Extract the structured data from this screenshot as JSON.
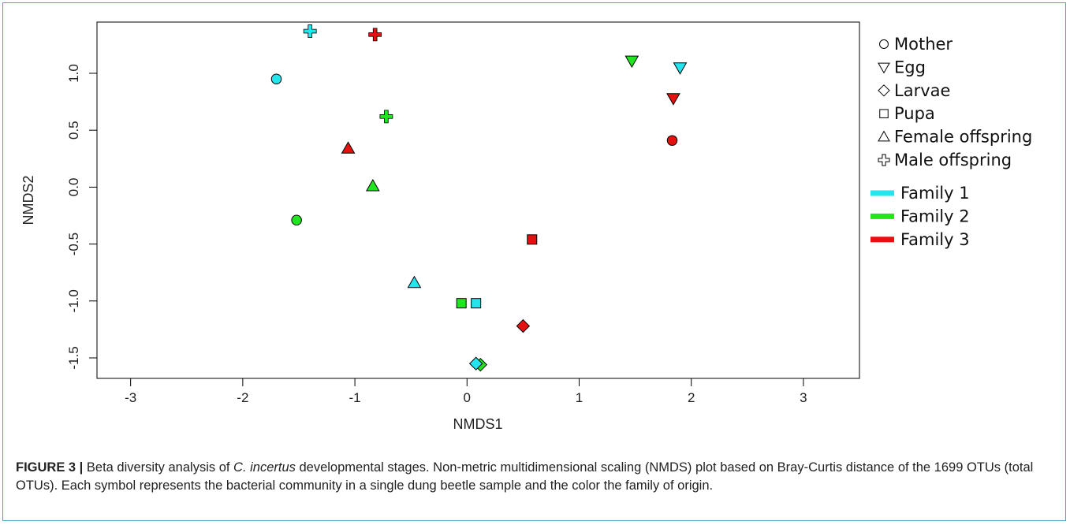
{
  "chart_data": {
    "type": "scatter",
    "xlabel": "NMDS1",
    "ylabel": "NMDS2",
    "xlim": [
      -3.3,
      3.5
    ],
    "ylim": [
      -1.68,
      1.45
    ],
    "xticks": [
      "-3",
      "-2",
      "-1",
      "0",
      "1",
      "2",
      "3"
    ],
    "xtick_values": [
      -3,
      -2,
      -1,
      0,
      1,
      2,
      3
    ],
    "yticks": [
      "-1.5",
      "-1.0",
      "-0.5",
      "0.0",
      "0.5",
      "1.0"
    ],
    "ytick_values": [
      -1.5,
      -1.0,
      -0.5,
      0.0,
      0.5,
      1.0
    ],
    "grid": false,
    "legend_position": "right",
    "shape_legend": [
      {
        "symbol": "circle",
        "label": "Mother"
      },
      {
        "symbol": "triangle-down",
        "label": "Egg"
      },
      {
        "symbol": "diamond",
        "label": "Larvae"
      },
      {
        "symbol": "square",
        "label": "Pupa"
      },
      {
        "symbol": "triangle-up",
        "label": "Female offspring"
      },
      {
        "symbol": "plus",
        "label": "Male offspring"
      }
    ],
    "color_legend": [
      {
        "color": "#22e5ee",
        "label": "Family 1"
      },
      {
        "color": "#22e522",
        "label": "Family 2"
      },
      {
        "color": "#e51111",
        "label": "Family 3"
      }
    ],
    "points": [
      {
        "family": 0,
        "symbol": "plus",
        "x": -1.4,
        "y": 1.37
      },
      {
        "family": 2,
        "symbol": "plus",
        "x": -0.82,
        "y": 1.34
      },
      {
        "family": 0,
        "symbol": "circle",
        "x": -1.7,
        "y": 0.95
      },
      {
        "family": 1,
        "symbol": "plus",
        "x": -0.72,
        "y": 0.62
      },
      {
        "family": 2,
        "symbol": "triangle-up",
        "x": -1.06,
        "y": 0.34
      },
      {
        "family": 1,
        "symbol": "triangle-up",
        "x": -0.84,
        "y": 0.01
      },
      {
        "family": 1,
        "symbol": "circle",
        "x": -1.52,
        "y": -0.29
      },
      {
        "family": 0,
        "symbol": "triangle-up",
        "x": -0.47,
        "y": -0.84
      },
      {
        "family": 1,
        "symbol": "square",
        "x": -0.05,
        "y": -1.02
      },
      {
        "family": 0,
        "symbol": "square",
        "x": 0.08,
        "y": -1.02
      },
      {
        "family": 2,
        "symbol": "diamond",
        "x": 0.5,
        "y": -1.22
      },
      {
        "family": 1,
        "symbol": "diamond",
        "x": 0.12,
        "y": -1.56
      },
      {
        "family": 0,
        "symbol": "diamond",
        "x": 0.08,
        "y": -1.55
      },
      {
        "family": 2,
        "symbol": "square",
        "x": 0.58,
        "y": -0.46
      },
      {
        "family": 1,
        "symbol": "triangle-down",
        "x": 1.47,
        "y": 1.11
      },
      {
        "family": 0,
        "symbol": "triangle-down",
        "x": 1.9,
        "y": 1.05
      },
      {
        "family": 2,
        "symbol": "triangle-down",
        "x": 1.84,
        "y": 0.78
      },
      {
        "family": 2,
        "symbol": "circle",
        "x": 1.83,
        "y": 0.41
      }
    ]
  },
  "caption": {
    "label": "FIGURE 3 |",
    "text_before_italic": " Beta diversity analysis of ",
    "italic": "C. incertus",
    "text_after_italic": " developmental stages. Non-metric multidimensional scaling (NMDS) plot based on Bray-Curtis distance of the 1699 OTUs (total OTUs). Each symbol represents the bacterial community in a single dung beetle sample and the color the family of origin."
  }
}
